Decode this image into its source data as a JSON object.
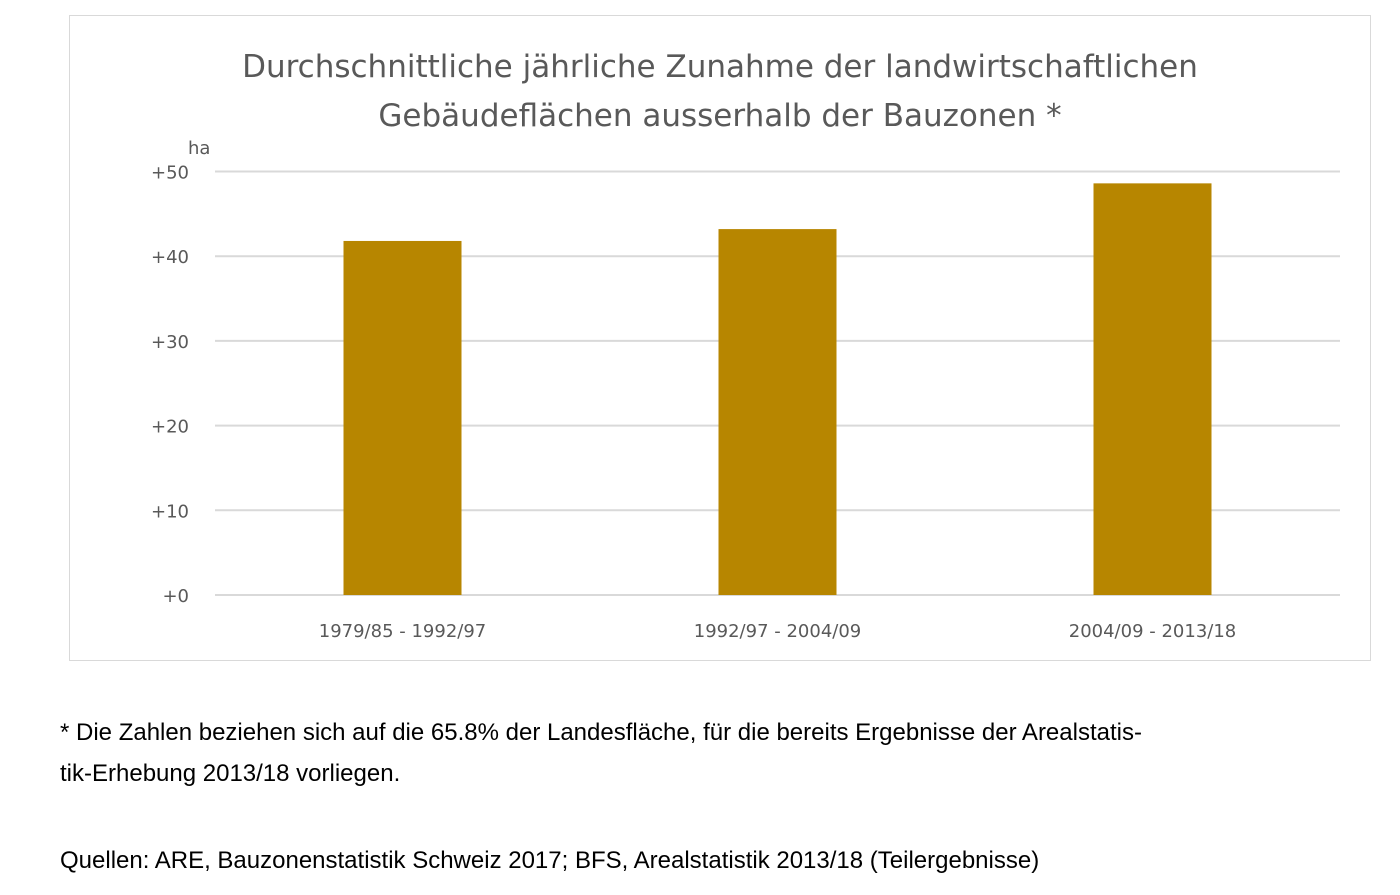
{
  "chart_data": {
    "type": "bar",
    "title": [
      "Durchschnittliche jährliche Zunahme der landwirtschaftlichen",
      "Gebäudeflächen ausserhalb der Bauzonen *"
    ],
    "ylabel": "ha",
    "categories": [
      "1979/85 - 1992/97",
      "1992/97 - 2004/09",
      "2004/09 - 2013/18"
    ],
    "values": [
      41.8,
      43.2,
      48.6
    ],
    "ylim": [
      0,
      50
    ],
    "yticks": [
      0,
      10,
      20,
      30,
      40,
      50
    ],
    "ytick_labels": [
      "+0",
      "+10",
      "+20",
      "+30",
      "+40",
      "+50"
    ],
    "grid": true,
    "bar_color": "#b78600"
  },
  "footnote": "* Die Zahlen beziehen sich auf die 65.8% der Landesfläche, für die bereits Ergebnisse der Arealstatis-tik-Erhebung 2013/18 vorliegen.",
  "footnote_lines": [
    "* Die Zahlen beziehen sich auf die 65.8% der Landesfläche, für die bereits Ergebnisse der Arealstatis-",
    "tik-Erhebung 2013/18 vorliegen."
  ],
  "sources": "Quellen: ARE, Bauzonenstatistik Schweiz 2017; BFS, Arealstatistik 2013/18 (Teilergebnisse)"
}
